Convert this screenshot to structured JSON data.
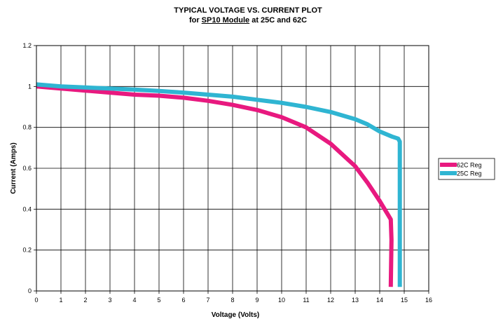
{
  "chart_data": {
    "type": "line",
    "title": "TYPICAL VOLTAGE VS. CURRENT PLOT",
    "subtitle": {
      "prefix": "for ",
      "underlined": "SP10 Module",
      "suffix": " at 25C and 62C"
    },
    "xlabel": "Voltage (Volts)",
    "ylabel": "Current (Amps)",
    "xlim": [
      0,
      16
    ],
    "ylim": [
      0,
      1.2
    ],
    "xticks": [
      "0",
      "1",
      "2",
      "3",
      "4",
      "5",
      "6",
      "7",
      "8",
      "9",
      "10",
      "11",
      "12",
      "13",
      "14",
      "15",
      "16"
    ],
    "yticks": [
      "0",
      "0.2",
      "0.4",
      "0.6",
      "0.8",
      "1",
      "1.2"
    ],
    "grid": true,
    "legend_position": "right",
    "series": [
      {
        "name": "62C Reg",
        "color": "#e8197f",
        "points": [
          [
            0,
            1.0
          ],
          [
            1,
            0.99
          ],
          [
            2,
            0.98
          ],
          [
            3,
            0.97
          ],
          [
            4,
            0.96
          ],
          [
            5,
            0.955
          ],
          [
            6,
            0.945
          ],
          [
            7,
            0.93
          ],
          [
            8,
            0.91
          ],
          [
            9,
            0.885
          ],
          [
            10,
            0.85
          ],
          [
            11,
            0.8
          ],
          [
            12,
            0.72
          ],
          [
            13,
            0.61
          ],
          [
            13.5,
            0.53
          ],
          [
            14,
            0.44
          ],
          [
            14.35,
            0.37
          ],
          [
            14.45,
            0.35
          ],
          [
            14.48,
            0.25
          ],
          [
            14.45,
            0.02
          ]
        ]
      },
      {
        "name": "25C Reg",
        "color": "#2fb5d2",
        "points": [
          [
            0,
            1.01
          ],
          [
            1,
            1.0
          ],
          [
            2,
            0.995
          ],
          [
            3,
            0.99
          ],
          [
            4,
            0.985
          ],
          [
            5,
            0.978
          ],
          [
            6,
            0.97
          ],
          [
            7,
            0.96
          ],
          [
            8,
            0.95
          ],
          [
            9,
            0.935
          ],
          [
            10,
            0.92
          ],
          [
            11,
            0.9
          ],
          [
            12,
            0.875
          ],
          [
            13,
            0.84
          ],
          [
            13.5,
            0.815
          ],
          [
            14,
            0.78
          ],
          [
            14.5,
            0.755
          ],
          [
            14.75,
            0.745
          ],
          [
            14.82,
            0.73
          ],
          [
            14.82,
            0.02
          ]
        ]
      }
    ]
  }
}
